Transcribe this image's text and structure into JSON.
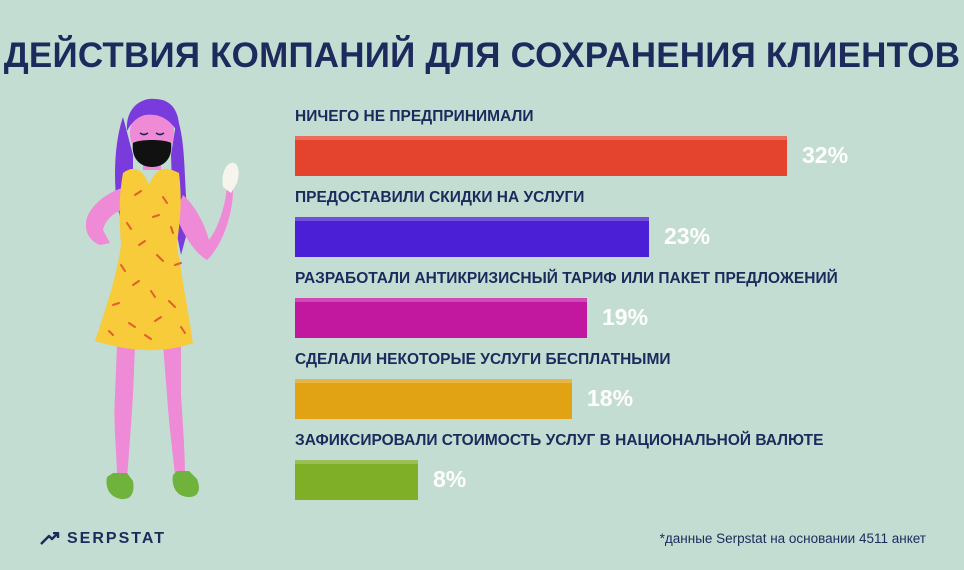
{
  "chart_data": {
    "type": "bar",
    "orientation": "horizontal",
    "title": "ДЕЙСТВИЯ КОМПАНИЙ ДЛЯ СОХРАНЕНИЯ КЛИЕНТОВ",
    "categories": [
      "НИЧЕГО НЕ ПРЕДПРИНИМАЛИ",
      "ПРЕДОСТАВИЛИ СКИДКИ НА УСЛУГИ",
      "РАЗРАБОТАЛИ АНТИКРИЗИСНЫЙ ТАРИФ ИЛИ ПАКЕТ ПРЕДЛОЖЕНИЙ",
      "СДЕЛАЛИ НЕКОТОРЫЕ УСЛУГИ БЕСПЛАТНЫМИ",
      "ЗАФИКСИРОВАЛИ СТОИМОСТЬ УСЛУГ В НАЦИОНАЛЬНОЙ ВАЛЮТЕ"
    ],
    "values": [
      32,
      23,
      19,
      18,
      8
    ],
    "value_labels": [
      "32%",
      "23%",
      "19%",
      "18%",
      "8%"
    ],
    "bar_colors": [
      "#e4432d",
      "#4a1fd6",
      "#c2189f",
      "#e1a213",
      "#7fae27"
    ],
    "unit": "%",
    "grid": false,
    "legend": "none"
  },
  "branding": {
    "logo_text": "SERPSTAT",
    "logo_icon": "serpstat-arrow-icon"
  },
  "footnote": "*данные Serpstat на основании 4511 анкет",
  "colors": {
    "background": "#c3ddd3",
    "text": "#1c2a5c",
    "value_text": "#ffffff"
  }
}
